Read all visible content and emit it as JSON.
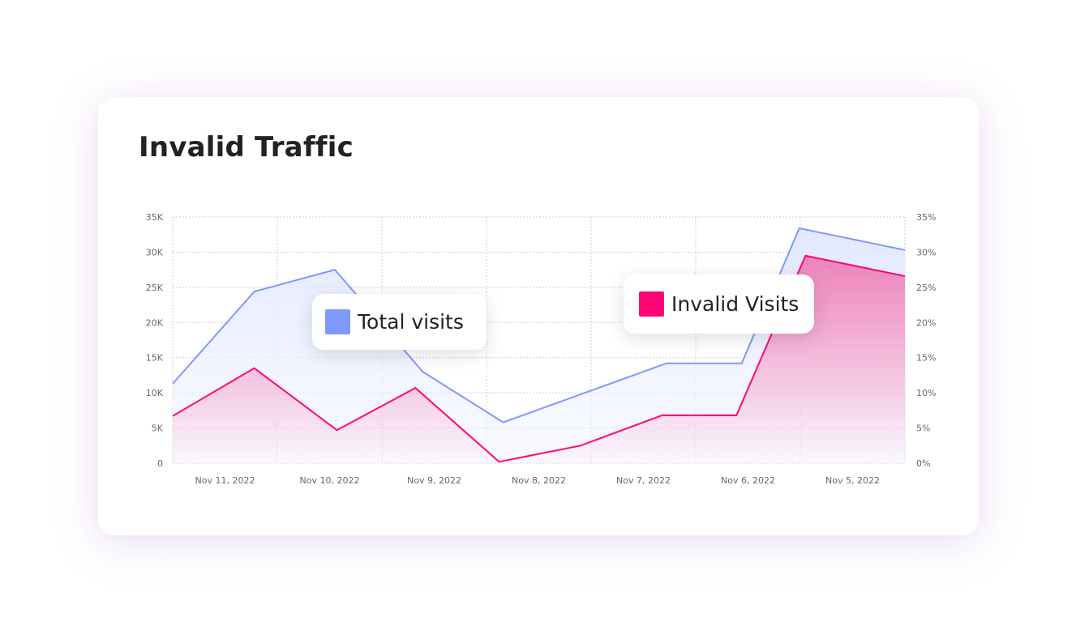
{
  "chart_data": {
    "type": "area",
    "title": "Invalid Traffic",
    "categories": [
      "Nov 11, 2022",
      "Nov 10, 2022",
      "Nov 9, 2022",
      "Nov 8, 2022",
      "Nov 7, 2022",
      "Nov 6, 2022",
      "Nov 5, 2022"
    ],
    "x_range": [
      0,
      7
    ],
    "y_left": {
      "ticks": [
        "0",
        "5K",
        "10K",
        "15K",
        "20K",
        "25K",
        "30K",
        "35K"
      ],
      "range": [
        0,
        35000
      ]
    },
    "y_right": {
      "ticks": [
        "0%",
        "5%",
        "10%",
        "15%",
        "20%",
        "25%",
        "30%",
        "35%"
      ],
      "range": [
        0,
        35
      ]
    },
    "grid": true,
    "series": [
      {
        "name": "Total visits",
        "axis": "left",
        "color": "#7f98fb",
        "x": [
          0,
          0.78,
          1.55,
          2.39,
          3.16,
          4.72,
          5.44,
          5.99,
          7
        ],
        "values": [
          11300,
          24400,
          27500,
          13000,
          5800,
          14200,
          14200,
          33400,
          30300
        ]
      },
      {
        "name": "Invalid Visits",
        "axis": "right",
        "color": "#ff0677",
        "x": [
          0,
          0.78,
          1.57,
          2.32,
          3.12,
          3.9,
          4.68,
          5.39,
          6.05,
          7
        ],
        "values": [
          6.7,
          13.5,
          4.7,
          10.7,
          0.2,
          2.5,
          6.8,
          6.8,
          29.5,
          26.6
        ]
      }
    ]
  }
}
